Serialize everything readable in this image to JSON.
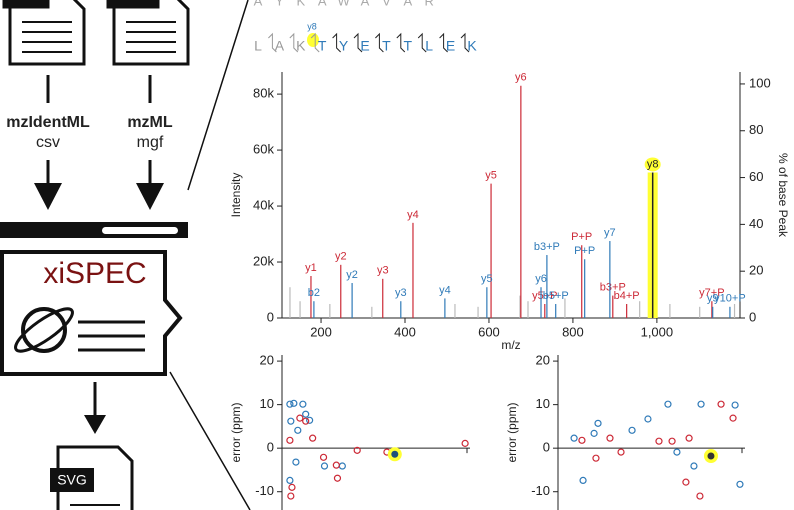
{
  "diagram": {
    "input1": "mzIdentML",
    "input1_alt": "csv",
    "input2": "mzML",
    "input2_alt": "mgf",
    "app": "xiSPEC",
    "output": "SVG"
  },
  "sequence": {
    "peptide1": [
      "A",
      "Y",
      "K",
      "A",
      "W",
      "A",
      "V",
      "A",
      "R"
    ],
    "peptide2": [
      "L",
      "A",
      "K",
      "T",
      "Y",
      "E",
      "T",
      "T",
      "L",
      "E",
      "K"
    ],
    "peptide2_colors": [
      "#999",
      "#999",
      "#999",
      "#2f7ab8",
      "#2f7ab8",
      "#2f7ab8",
      "#2f7ab8",
      "#2f7ab8",
      "#2f7ab8",
      "#2f7ab8",
      "#2f7ab8"
    ],
    "highlight_label": "y8"
  },
  "chart_data": [
    {
      "type": "spectrum",
      "xlabel": "m/z",
      "ylabel": "Intensity",
      "y2label": "% of base Peak",
      "xlim": [
        107,
        1198
      ],
      "xticks": [
        200,
        400,
        600,
        800,
        {
          "value": 1000,
          "label": "1,000"
        }
      ],
      "ylim": [
        0,
        87900
      ],
      "yticks": [
        0,
        {
          "value": 20000,
          "label": "20k"
        },
        {
          "value": 40000,
          "label": "40k"
        },
        {
          "value": 60000,
          "label": "60k"
        },
        {
          "value": 80000,
          "label": "80k"
        }
      ],
      "y2lim": [
        0,
        105.1
      ],
      "y2ticks": [
        0,
        20,
        40,
        60,
        80,
        100
      ],
      "series": [
        {
          "color": "#cc2936",
          "x": [
            176,
            247,
            347,
            419,
            605,
            676,
            733,
            821,
            895,
            928,
            1131
          ],
          "values": [
            15000,
            19000,
            14000,
            34000,
            48000,
            83000,
            5000,
            26000,
            8000,
            5000,
            6000
          ],
          "labels": [
            "y1",
            "y2",
            "y3",
            "y4",
            "y5",
            "y6",
            "y5+P",
            "P+P",
            "b3+P",
            "b4+P",
            "y7+P"
          ]
        },
        {
          "color": "#2f7ab8",
          "x": [
            183,
            274,
            390,
            495,
            595,
            724,
            738,
            759,
            828,
            888,
            1133,
            1174
          ],
          "values": [
            6000,
            12500,
            6000,
            7000,
            11000,
            11000,
            22500,
            5000,
            21000,
            27500,
            4000,
            4000
          ],
          "labels": [
            "b2",
            "y2",
            "y3",
            "y4",
            "y5",
            "y6",
            "b3+P",
            "b5+P",
            "P+P",
            "y7",
            "y9",
            "y10+P"
          ]
        },
        {
          "color": "#222222",
          "highlight": true,
          "x": [
            990
          ],
          "values": [
            52000
          ],
          "labels": [
            "y8"
          ]
        },
        {
          "color": "#bbbbbb",
          "x": [
            126,
            150,
            221,
            321,
            519,
            574,
            674,
            693,
            781,
            959,
            1031,
            1102,
            1185
          ],
          "values": [
            11000,
            6000,
            5000,
            4000,
            5000,
            4000,
            8000,
            6000,
            7000,
            6000,
            5000,
            4000,
            5000
          ]
        }
      ]
    },
    {
      "type": "scatter",
      "ylabel": "error (ppm)",
      "xlim": [
        0,
        100
      ],
      "ylim": [
        -14.2,
        21.4
      ],
      "yticks": [
        -10,
        0,
        10,
        20
      ],
      "series": [
        {
          "color": "#2f7ab8",
          "x": [
            4.2,
            6.3,
            11.1,
            4.7,
            8.4,
            12.6,
            14.7,
            7.4,
            4.2,
            22.6,
            32.1
          ],
          "values": [
            10.1,
            10.3,
            10.1,
            6.2,
            4.1,
            7.8,
            6.4,
            -3.2,
            -7.4,
            -4.1,
            -4.1
          ]
        },
        {
          "color": "#cc2936",
          "x": [
            4.2,
            9.5,
            12.6,
            16.3,
            22.1,
            28.9,
            29.5,
            5.3,
            4.7,
            40,
            55.8,
            97.4
          ],
          "values": [
            1.8,
            6.9,
            6.2,
            2.3,
            -2.1,
            -3.9,
            -6.9,
            -9,
            -11,
            -0.5,
            -0.9,
            1.1
          ]
        },
        {
          "color": "#2f7ab8",
          "highlight": true,
          "x": [
            60
          ],
          "values": [
            -1.4
          ]
        }
      ]
    },
    {
      "type": "scatter",
      "ylabel": "error (ppm)",
      "xlim": [
        0,
        100
      ],
      "ylim": [
        -14.2,
        21.4
      ],
      "yticks": [
        -10,
        0,
        10,
        20
      ],
      "series": [
        {
          "color": "#2f7ab8",
          "x": [
            8.6,
            13.4,
            21.4,
            19.3,
            39.6,
            48.1,
            58.8,
            63.6,
            72.7,
            76.5,
            94.7,
            97.3
          ],
          "values": [
            2.3,
            -7.4,
            5.7,
            3.4,
            4.1,
            6.7,
            10.1,
            -0.9,
            -4.1,
            10.1,
            9.9,
            -8.3
          ]
        },
        {
          "color": "#cc2936",
          "x": [
            12.8,
            20.3,
            27.8,
            33.7,
            54,
            61,
            68.4,
            70.1,
            75.9,
            87.2,
            93.6
          ],
          "values": [
            1.8,
            -2.3,
            2.3,
            -0.9,
            1.6,
            1.6,
            -7.8,
            2.3,
            -11,
            10.1,
            6.9
          ]
        },
        {
          "color": "#cc2936",
          "highlight": true,
          "x": [
            81.8
          ],
          "values": [
            -1.8
          ]
        }
      ]
    }
  ]
}
